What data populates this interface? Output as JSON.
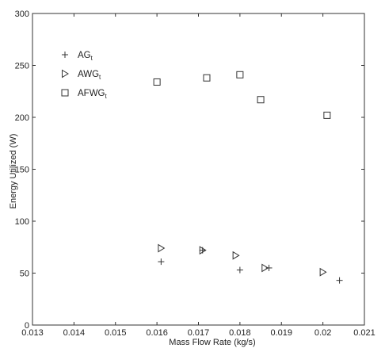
{
  "chart_data": {
    "type": "scatter",
    "title": "",
    "xlabel": "Mass Flow Rate (kg/s)",
    "ylabel": "Energy Utilized (W)",
    "xlim": [
      0.013,
      0.021
    ],
    "ylim": [
      0,
      300
    ],
    "xticks": [
      0.013,
      0.014,
      0.015,
      0.016,
      0.017,
      0.018,
      0.019,
      0.02,
      0.021
    ],
    "xtick_labels": [
      "0.013",
      "0.014",
      "0.015",
      "0.016",
      "0.017",
      "0.018",
      "0.019",
      "0.02",
      "0.021"
    ],
    "yticks": [
      0,
      50,
      100,
      150,
      200,
      250,
      300
    ],
    "ytick_labels": [
      "0",
      "50",
      "100",
      "150",
      "200",
      "250",
      "300"
    ],
    "grid": false,
    "legend_position": "top-left",
    "series": [
      {
        "name": "AG",
        "name_subscript": "t",
        "marker": "plus",
        "x": [
          0.0161,
          0.0171,
          0.018,
          0.0187,
          0.0204
        ],
        "y": [
          61,
          72,
          53,
          55,
          43
        ]
      },
      {
        "name": "AWG",
        "name_subscript": "t",
        "marker": "triangle-right",
        "x": [
          0.0161,
          0.0171,
          0.0179,
          0.0186,
          0.02
        ],
        "y": [
          74,
          72,
          67,
          55,
          51
        ]
      },
      {
        "name": "AFWG",
        "name_subscript": "t",
        "marker": "square",
        "x": [
          0.016,
          0.0172,
          0.018,
          0.0185,
          0.0201
        ],
        "y": [
          234,
          238,
          241,
          217,
          202
        ]
      }
    ]
  }
}
